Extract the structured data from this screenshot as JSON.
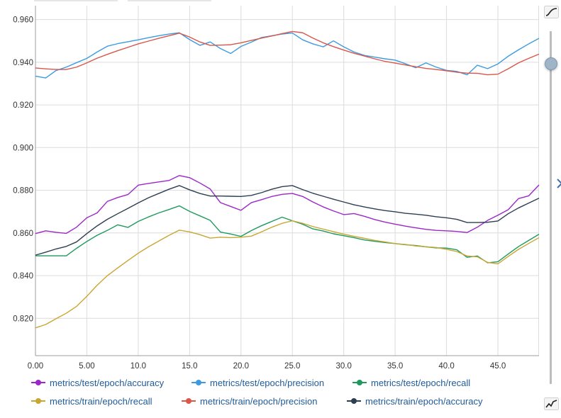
{
  "chart_data": {
    "type": "line",
    "xlim": [
      0,
      49
    ],
    "ylim": [
      0.8025,
      0.9665
    ],
    "grid": true,
    "legend_position": "bottom",
    "x_ticks": [
      {
        "value": 0,
        "label": "0.00"
      },
      {
        "value": 5,
        "label": "5.00"
      },
      {
        "value": 10,
        "label": "10.0"
      },
      {
        "value": 15,
        "label": "15.0"
      },
      {
        "value": 20,
        "label": "20.0"
      },
      {
        "value": 25,
        "label": "25.0"
      },
      {
        "value": 30,
        "label": "30.0"
      },
      {
        "value": 35,
        "label": "35.0"
      },
      {
        "value": 40,
        "label": "40.0"
      },
      {
        "value": 45,
        "label": "45.0"
      }
    ],
    "y_ticks": [
      {
        "value": 0.82,
        "label": "0.820"
      },
      {
        "value": 0.84,
        "label": "0.840"
      },
      {
        "value": 0.86,
        "label": "0.860"
      },
      {
        "value": 0.88,
        "label": "0.880"
      },
      {
        "value": 0.9,
        "label": "0.900"
      },
      {
        "value": 0.92,
        "label": "0.920"
      },
      {
        "value": 0.94,
        "label": "0.940"
      },
      {
        "value": 0.96,
        "label": "0.960"
      }
    ],
    "x": [
      0,
      1,
      2,
      3,
      4,
      5,
      6,
      7,
      8,
      9,
      10,
      11,
      12,
      13,
      14,
      15,
      16,
      17,
      18,
      19,
      20,
      21,
      22,
      23,
      24,
      25,
      26,
      27,
      28,
      29,
      30,
      31,
      32,
      33,
      34,
      35,
      36,
      37,
      38,
      39,
      40,
      41,
      42,
      43,
      44,
      45,
      46,
      47,
      48,
      49
    ],
    "series": [
      {
        "name": "metrics/test/epoch/accuracy",
        "color": "#9c27c9",
        "values": [
          0.8597,
          0.861,
          0.8603,
          0.8598,
          0.8627,
          0.8671,
          0.8694,
          0.8748,
          0.8766,
          0.878,
          0.8824,
          0.8832,
          0.8839,
          0.8846,
          0.8869,
          0.8859,
          0.8834,
          0.8806,
          0.8742,
          0.8724,
          0.8706,
          0.8742,
          0.8756,
          0.8771,
          0.8781,
          0.8785,
          0.8771,
          0.8745,
          0.8722,
          0.8703,
          0.8686,
          0.8691,
          0.8678,
          0.8663,
          0.8651,
          0.8641,
          0.8632,
          0.8624,
          0.8617,
          0.8612,
          0.861,
          0.8607,
          0.8602,
          0.8627,
          0.8659,
          0.8683,
          0.8709,
          0.8761,
          0.8774,
          0.8825
        ]
      },
      {
        "name": "metrics/test/epoch/precision",
        "color": "#3c9be0",
        "values": [
          0.9335,
          0.9326,
          0.9361,
          0.9377,
          0.9398,
          0.9418,
          0.9448,
          0.9475,
          0.9487,
          0.9496,
          0.9505,
          0.9515,
          0.9524,
          0.9532,
          0.9538,
          0.9506,
          0.9479,
          0.9495,
          0.9464,
          0.9441,
          0.9474,
          0.9494,
          0.9516,
          0.9524,
          0.9532,
          0.9537,
          0.9505,
          0.9486,
          0.9472,
          0.95,
          0.9472,
          0.9448,
          0.9432,
          0.9424,
          0.9416,
          0.941,
          0.9393,
          0.9374,
          0.9397,
          0.9377,
          0.9362,
          0.9357,
          0.9341,
          0.9386,
          0.937,
          0.9392,
          0.9428,
          0.9458,
          0.9486,
          0.9512
        ]
      },
      {
        "name": "metrics/test/epoch/recall",
        "color": "#1e9a5e",
        "values": [
          0.8493,
          0.8493,
          0.8493,
          0.8493,
          0.8528,
          0.856,
          0.8589,
          0.8612,
          0.8638,
          0.8626,
          0.8654,
          0.8675,
          0.8694,
          0.871,
          0.8727,
          0.8701,
          0.868,
          0.8659,
          0.8604,
          0.8595,
          0.8584,
          0.8611,
          0.8634,
          0.8654,
          0.8674,
          0.8657,
          0.8641,
          0.8619,
          0.8609,
          0.8596,
          0.8587,
          0.8578,
          0.8567,
          0.8561,
          0.8555,
          0.855,
          0.8545,
          0.8541,
          0.8535,
          0.853,
          0.8529,
          0.8521,
          0.8486,
          0.8492,
          0.846,
          0.8465,
          0.8501,
          0.8536,
          0.8565,
          0.8594
        ]
      },
      {
        "name": "metrics/train/epoch/recall",
        "color": "#c9a632",
        "values": [
          0.8155,
          0.8171,
          0.8198,
          0.8224,
          0.8256,
          0.8303,
          0.8355,
          0.84,
          0.8436,
          0.8471,
          0.8505,
          0.8535,
          0.8562,
          0.8589,
          0.8613,
          0.8605,
          0.8592,
          0.8576,
          0.858,
          0.8578,
          0.858,
          0.8585,
          0.8605,
          0.8627,
          0.8645,
          0.8657,
          0.8645,
          0.863,
          0.8618,
          0.8606,
          0.8594,
          0.8584,
          0.8575,
          0.8565,
          0.8558,
          0.855,
          0.8546,
          0.8539,
          0.8535,
          0.8532,
          0.8523,
          0.8513,
          0.8492,
          0.8488,
          0.8462,
          0.8455,
          0.849,
          0.8523,
          0.8551,
          0.8578
        ]
      },
      {
        "name": "metrics/train/epoch/precision",
        "color": "#d8574a",
        "values": [
          0.9373,
          0.9369,
          0.9366,
          0.9366,
          0.9377,
          0.9397,
          0.9419,
          0.9437,
          0.9454,
          0.947,
          0.9486,
          0.9499,
          0.9512,
          0.9524,
          0.9536,
          0.9518,
          0.9495,
          0.9479,
          0.948,
          0.9482,
          0.9491,
          0.9502,
          0.9513,
          0.9523,
          0.9534,
          0.9544,
          0.9538,
          0.9513,
          0.9491,
          0.9473,
          0.9457,
          0.9442,
          0.9429,
          0.9416,
          0.9404,
          0.9396,
          0.9387,
          0.9379,
          0.9371,
          0.9366,
          0.936,
          0.9353,
          0.9349,
          0.9348,
          0.9341,
          0.9344,
          0.9369,
          0.9397,
          0.9418,
          0.9438
        ]
      },
      {
        "name": "metrics/train/epoch/accuracy",
        "color": "#2c3e52",
        "values": [
          0.8496,
          0.851,
          0.8525,
          0.8537,
          0.8558,
          0.8597,
          0.8633,
          0.8664,
          0.869,
          0.8715,
          0.8741,
          0.8765,
          0.8785,
          0.8805,
          0.8822,
          0.8802,
          0.8785,
          0.8773,
          0.8773,
          0.8772,
          0.8771,
          0.8776,
          0.8789,
          0.8805,
          0.8817,
          0.8822,
          0.8803,
          0.8786,
          0.8772,
          0.8758,
          0.8745,
          0.8732,
          0.8722,
          0.8713,
          0.8705,
          0.8699,
          0.8692,
          0.8688,
          0.8683,
          0.8676,
          0.8671,
          0.8664,
          0.8649,
          0.8649,
          0.865,
          0.8656,
          0.869,
          0.8717,
          0.874,
          0.8763
        ]
      }
    ]
  }
}
